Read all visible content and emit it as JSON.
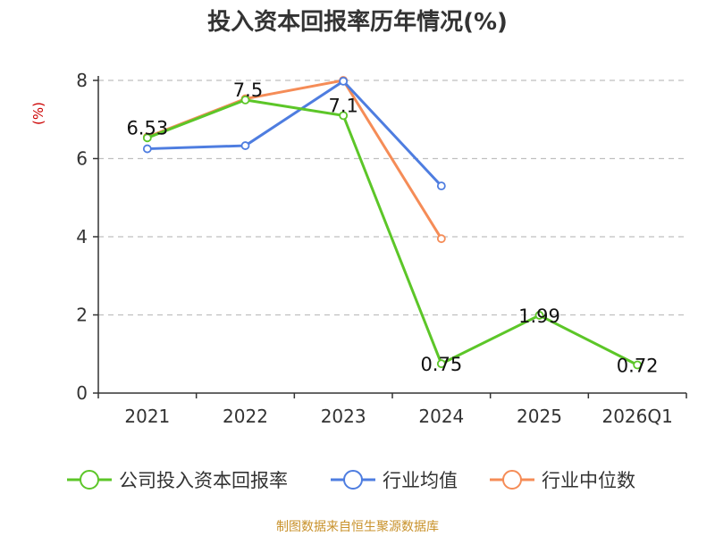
{
  "chart_data": {
    "type": "line",
    "title": "投入资本回报率历年情况(%)",
    "xlabel": "",
    "ylabel": "(%)",
    "categories": [
      "2021",
      "2022",
      "2023",
      "2024",
      "2025",
      "2026Q1"
    ],
    "ylim": [
      0,
      8
    ],
    "yticks": [
      0,
      2,
      4,
      6,
      8
    ],
    "grid": true,
    "legend_position": "bottom",
    "series": [
      {
        "name": "公司投入资本回报率",
        "color": "#5cc628",
        "values": [
          6.53,
          7.5,
          7.1,
          0.75,
          1.99,
          0.72
        ],
        "labels": [
          "6.53",
          "7.5",
          "7.1",
          "0.75",
          "1.99",
          "0.72"
        ]
      },
      {
        "name": "行业均值",
        "color": "#4e7de0",
        "values": [
          6.25,
          6.33,
          7.98,
          5.3,
          null,
          null
        ],
        "labels": []
      },
      {
        "name": "行业中位数",
        "color": "#f58c57",
        "values": [
          6.55,
          7.53,
          8.0,
          3.95,
          null,
          null
        ],
        "labels": []
      }
    ],
    "source": "制图数据来自恒生聚源数据库"
  }
}
